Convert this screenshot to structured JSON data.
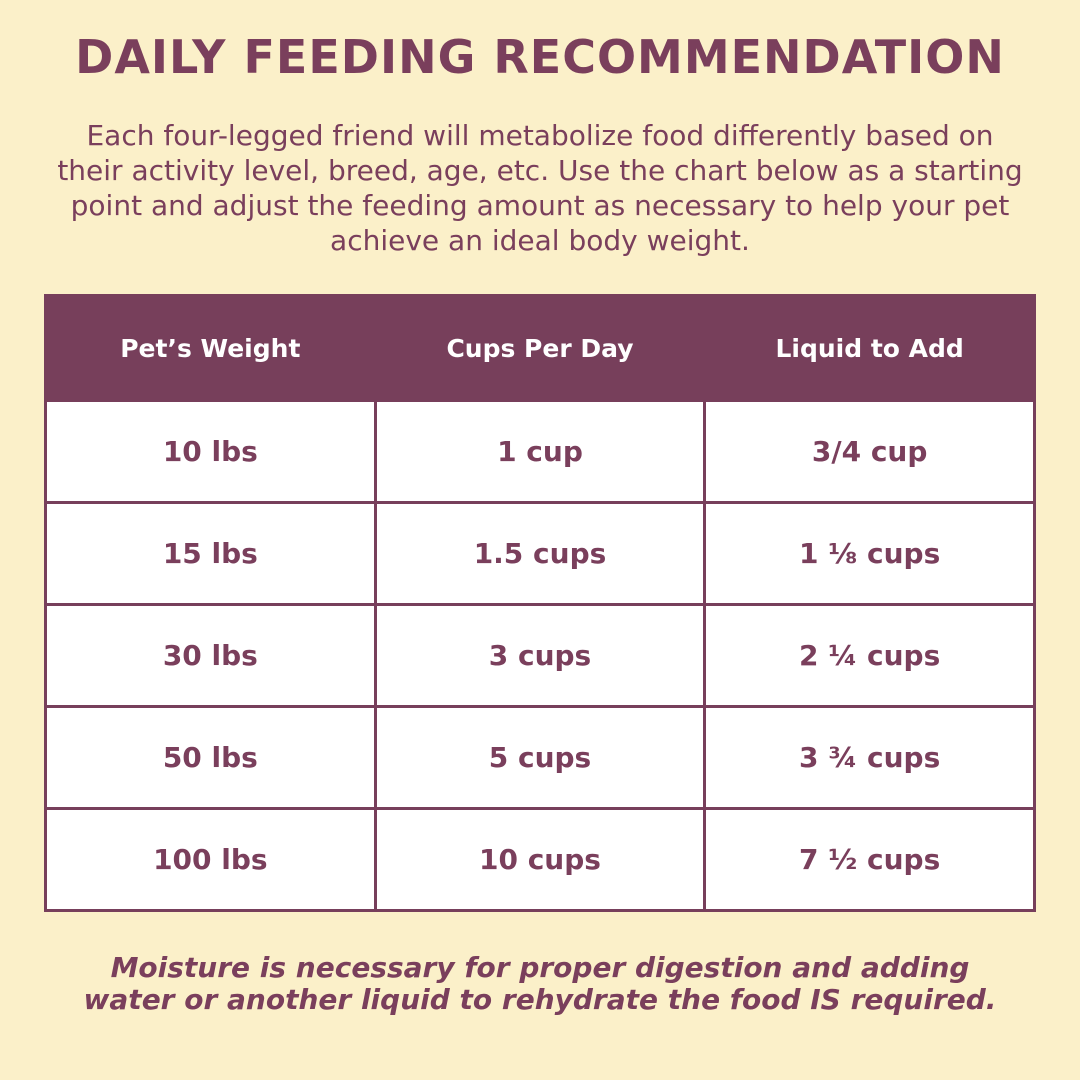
{
  "title": "DAILY FEEDING RECOMMENDATION",
  "intro": "Each four-legged friend will metabolize food differently based on their activity level, breed, age, etc. Use the chart below as a starting point and adjust the feeding amount as necessary to help your pet achieve an ideal body weight.",
  "table": {
    "headers": [
      "Pet’s Weight",
      "Cups Per Day",
      "Liquid to Add"
    ],
    "rows": [
      [
        "10 lbs",
        "1 cup",
        "3/4 cup"
      ],
      [
        "15 lbs",
        "1.5 cups",
        "1 ⅛ cups"
      ],
      [
        "30 lbs",
        "3 cups",
        "2 ¼ cups"
      ],
      [
        "50 lbs",
        "5 cups",
        "3 ¾ cups"
      ],
      [
        "100 lbs",
        "10 cups",
        "7 ½ cups"
      ]
    ]
  },
  "footer": {
    "line1": "Moisture is necessary for proper digestion and adding",
    "line2": "water or another liquid to rehydrate the food IS required."
  },
  "colors": {
    "background": "#fbf0c9",
    "accent": "#773f5b",
    "text": "#7a3f5c",
    "cell_background": "#ffffff"
  }
}
